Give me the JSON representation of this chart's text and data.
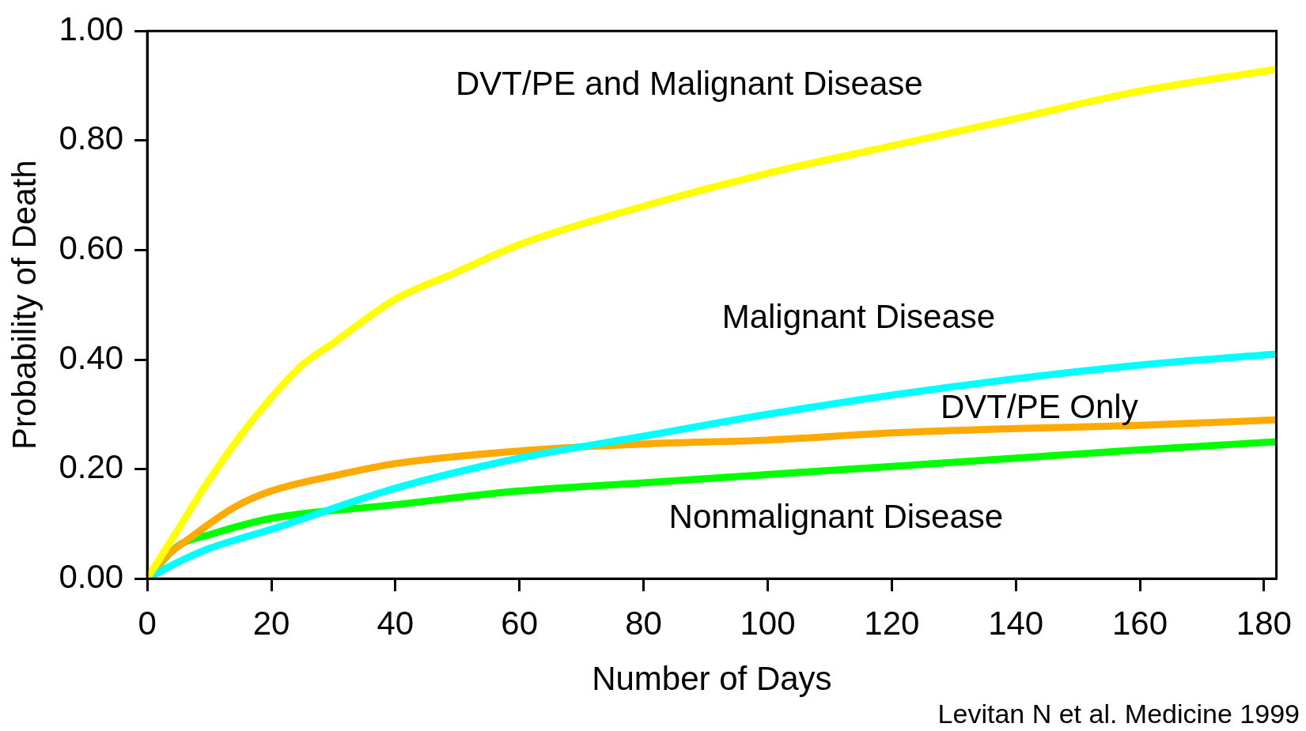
{
  "chart_data": {
    "type": "line",
    "xlabel": "Number of Days",
    "ylabel": "Probability of Death",
    "xlim": [
      0,
      182
    ],
    "xticks": [
      0,
      20,
      40,
      60,
      80,
      100,
      120,
      140,
      160,
      180
    ],
    "ylim": [
      0,
      1
    ],
    "yticks": [
      {
        "value": 0,
        "label": "0.00"
      },
      {
        "value": 0.2,
        "label": "0.20"
      },
      {
        "value": 0.4,
        "label": "0.40"
      },
      {
        "value": 0.6,
        "label": "0.60"
      },
      {
        "value": 0.8,
        "label": "0.80"
      },
      {
        "value": 1,
        "label": "1.00"
      }
    ],
    "grid": false,
    "legend": false,
    "marker": "none",
    "line_style": "solid",
    "series": [
      {
        "name": "DVT/PE and Malignant Disease",
        "color": "#ffff00",
        "x": [
          0,
          5,
          10,
          15,
          20,
          25,
          30,
          40,
          50,
          60,
          80,
          100,
          120,
          140,
          160,
          182
        ],
        "values": [
          0,
          0.09,
          0.18,
          0.26,
          0.33,
          0.39,
          0.43,
          0.51,
          0.56,
          0.61,
          0.68,
          0.74,
          0.79,
          0.84,
          0.89,
          0.93
        ]
      },
      {
        "name": "Malignant Disease",
        "color": "#00ffff",
        "x": [
          0,
          5,
          10,
          20,
          40,
          60,
          80,
          100,
          120,
          140,
          160,
          182
        ],
        "values": [
          0,
          0.03,
          0.055,
          0.09,
          0.165,
          0.22,
          0.26,
          0.3,
          0.335,
          0.365,
          0.39,
          0.41
        ]
      },
      {
        "name": "DVT/PE Only",
        "color": "#ffaa00",
        "x": [
          0,
          3,
          7,
          14,
          20,
          31,
          40,
          60,
          80,
          100,
          120,
          140,
          160,
          182
        ],
        "values": [
          0,
          0.04,
          0.075,
          0.13,
          0.16,
          0.19,
          0.21,
          0.233,
          0.246,
          0.253,
          0.266,
          0.274,
          0.28,
          0.29
        ]
      },
      {
        "name": "Nonmalignant Disease",
        "color": "#00ff00",
        "x": [
          0,
          5,
          10,
          20,
          40,
          60,
          80,
          100,
          120,
          140,
          160,
          182
        ],
        "values": [
          0,
          0.06,
          0.08,
          0.11,
          0.135,
          0.16,
          0.175,
          0.19,
          0.205,
          0.22,
          0.235,
          0.25
        ]
      }
    ],
    "annotations": [
      "Levitan N et al. Medicine 1999"
    ]
  }
}
